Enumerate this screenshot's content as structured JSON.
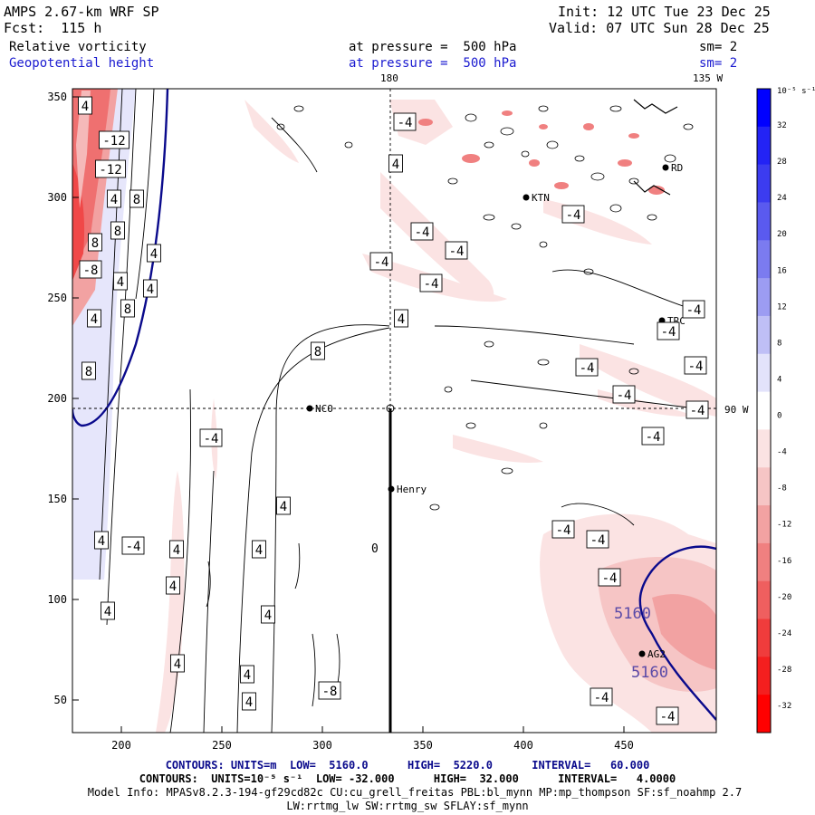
{
  "header": {
    "model": "AMPS 2.67-km WRF SP",
    "fcst": "Fcst:  115 h",
    "init": "Init: 12 UTC Tue 23 Dec 25",
    "valid": "Valid: 07 UTC Sun 28 Dec 25",
    "field1": "Relative vorticity",
    "field2": "Geopotential height",
    "level1": "at pressure =  500 hPa",
    "level2": "at pressure =  500 hPa",
    "sm1": "sm= 2",
    "sm2": "sm= 2"
  },
  "map": {
    "lon_label_top_180": "180",
    "lon_label_top_135w": "135 W",
    "lon_label_right_90w": "90 W",
    "zero_label": "0",
    "stations": [
      {
        "name": "NCO",
        "x": 342,
        "y": 451
      },
      {
        "name": "Henry",
        "x": 432,
        "y": 540
      },
      {
        "name": "KTN",
        "x": 581,
        "y": 218
      },
      {
        "name": "TRC",
        "x": 731,
        "y": 354
      },
      {
        "name": "AG2",
        "x": 709,
        "y": 722
      },
      {
        "name": "RD",
        "x": 735,
        "y": 185
      }
    ]
  },
  "axes": {
    "x_ticks": [
      "200",
      "250",
      "300",
      "350",
      "400",
      "450"
    ],
    "y_ticks": [
      "350",
      "300",
      "250",
      "200",
      "150",
      "100",
      "50"
    ]
  },
  "contour_labels": {
    "vort": [
      "4",
      "-12",
      "-12",
      "4",
      "8",
      "8",
      "8",
      "4",
      "4",
      "-8",
      "8",
      "4",
      "4",
      "8",
      "-4",
      "4",
      "4",
      "8",
      "4",
      "-4",
      "4",
      "4",
      "4",
      "4",
      "-4",
      "-4",
      "-4",
      "-4",
      "-4",
      "-4",
      "-4",
      "-4",
      "4",
      "4",
      "-4",
      "-4",
      "4",
      "-4",
      "-4",
      "-4",
      "-4",
      "-4",
      "-4",
      "-4",
      "-4",
      "-8",
      "4",
      "4"
    ],
    "height": [
      "5160",
      "5160"
    ]
  },
  "colorbar": {
    "unit": "10⁻⁵ s⁻¹",
    "labels": [
      "32",
      "28",
      "24",
      "20",
      "16",
      "12",
      "8",
      "4",
      "0",
      "-4",
      "-8",
      "-12",
      "-16",
      "-20",
      "-24",
      "-28",
      "-32"
    ],
    "colors": [
      "#0000ff",
      "#2323f5",
      "#3c3cf0",
      "#5a5aef",
      "#7b7bf0",
      "#9c9cf2",
      "#bfbff6",
      "#e3e3fb",
      "#ffffff",
      "#fbe3e3",
      "#f6c5c5",
      "#f2a2a2",
      "#f08080",
      "#ef5f5f",
      "#f03c3c",
      "#f41f1f",
      "#ff0000"
    ]
  },
  "footer": {
    "line1_a": "CONTOURS: UNITS=m  LOW=  5160.0      HIGH=  5220.0      INTERVAL=   60.000",
    "line2": "CONTOURS:  UNITS=10⁻⁵ s⁻¹  LOW= -32.000      HIGH=  32.000      INTERVAL=   4.0000",
    "line3": "Model Info: MPASv8.2.3-194-gf29cd82c CU:cu_grell_freitas PBL:bl_mynn MP:mp_thompson SF:sf_noahmp 2.7",
    "line4": "LW:rrtmg_lw SW:rrtmg_sw SFLAY:sf_mynn"
  }
}
